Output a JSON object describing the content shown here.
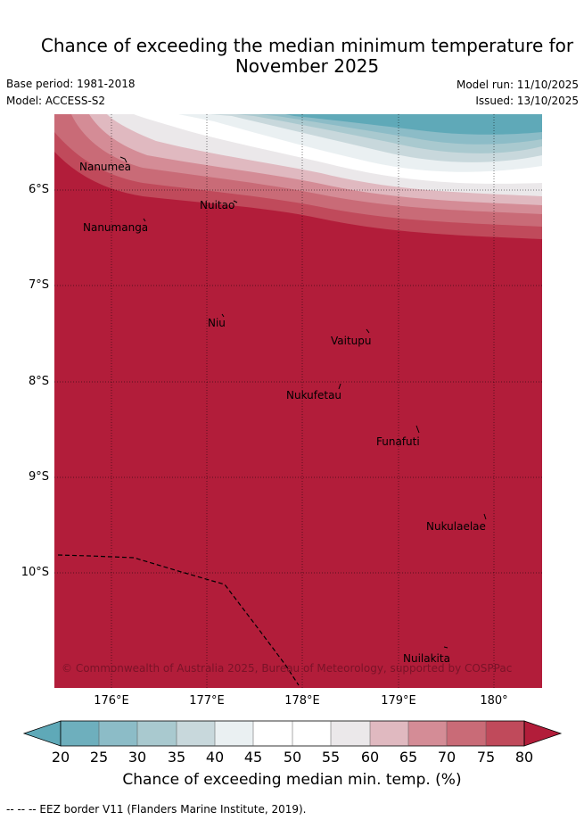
{
  "title_line1": "Chance of exceeding the median minimum temperature for",
  "title_line2": "November 2025",
  "base_period": "Base period: 1981-2018",
  "model": "Model: ACCESS-S2",
  "model_run": "Model run: 11/10/2025",
  "issued": "Issued: 13/10/2025",
  "lat_labels": [
    "6°S",
    "7°S",
    "8°S",
    "9°S",
    "10°S"
  ],
  "lon_labels": [
    "176°E",
    "177°E",
    "178°E",
    "179°E",
    "180°"
  ],
  "places": {
    "nanumea": "Nanumea",
    "nanumanga": "Nanumanga",
    "nuitao": "Nuitao",
    "niu": "Niu",
    "vaitupu": "Vaitupu",
    "nukufetau": "Nukufetau",
    "funafuti": "Funafuti",
    "nukulaelae": "Nukulaelae",
    "nuilakita": "Nuilakita"
  },
  "copyright": "© Commonwealth of Australia 2025, Bureau of Meteorology, supported by COSPPac",
  "colorbar": {
    "ticks": [
      "20",
      "25",
      "30",
      "35",
      "40",
      "45",
      "50",
      "55",
      "60",
      "65",
      "70",
      "75",
      "80"
    ],
    "colors": [
      "#5fa9b8",
      "#6eafbd",
      "#8cbcc7",
      "#a9c9cf",
      "#c8d8dc",
      "#eaf0f2",
      "#ffffff",
      "#ffffff",
      "#ebe8ea",
      "#e0b9c0",
      "#d48c96",
      "#c96b77",
      "#c04a5b",
      "#b21d3a"
    ],
    "label": "Chance of exceeding median min. temp. (%)"
  },
  "legend_note": "--  --  -- EEZ border V11 (Flanders Marine Institute, 2019)."
}
